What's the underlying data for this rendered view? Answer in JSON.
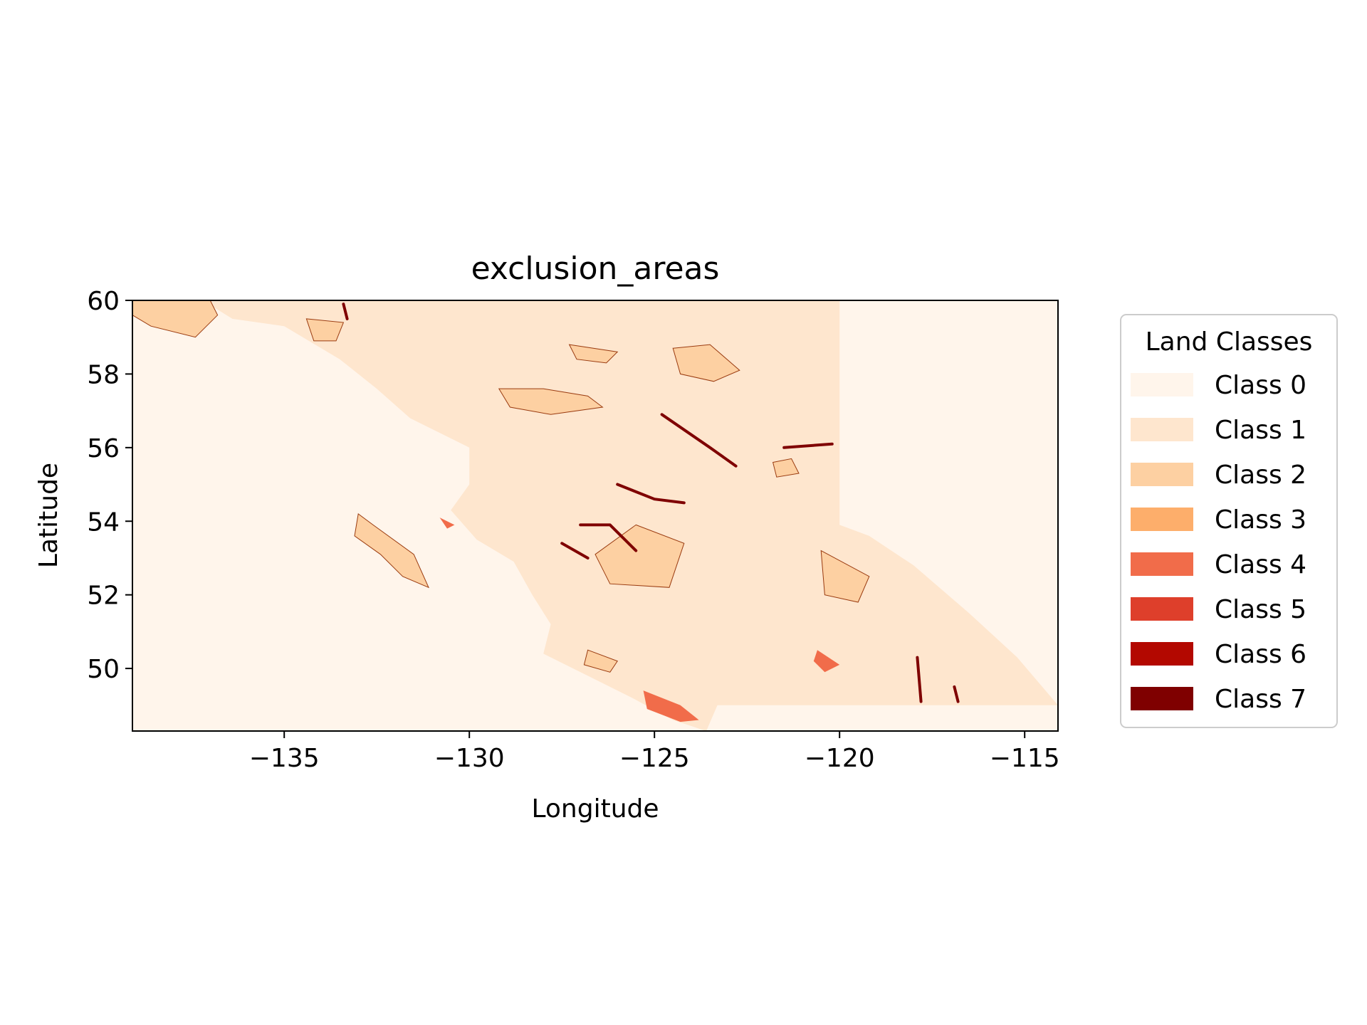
{
  "title": "exclusion_areas",
  "axes": {
    "xlabel": "Longitude",
    "ylabel": "Latitude",
    "xlim": [
      -139.1,
      -114.1
    ],
    "ylim": [
      48.3,
      60
    ],
    "xticks": [
      -135,
      -130,
      -125,
      -120,
      -115
    ],
    "yticks": [
      50,
      52,
      54,
      56,
      58,
      60
    ],
    "xtick_labels": [
      "−135",
      "−130",
      "−125",
      "−120",
      "−115"
    ],
    "ytick_labels": [
      "50",
      "52",
      "54",
      "56",
      "58",
      "60"
    ]
  },
  "legend": {
    "title": "Land Classes",
    "placement": "outside-right",
    "items": [
      {
        "label": "Class 0",
        "color": "#fff5eb"
      },
      {
        "label": "Class 1",
        "color": "#fee6ce"
      },
      {
        "label": "Class 2",
        "color": "#fdd0a2"
      },
      {
        "label": "Class 3",
        "color": "#fdae6b"
      },
      {
        "label": "Class 4",
        "color": "#f16c4a"
      },
      {
        "label": "Class 5",
        "color": "#de3f2b"
      },
      {
        "label": "Class 6",
        "color": "#b30800"
      },
      {
        "label": "Class 7",
        "color": "#7f0000"
      }
    ]
  },
  "map": {
    "colors": {
      "background": "#fff5eb",
      "land": "#fee6ce",
      "patch": "#fdd0a2",
      "patch_edge": "#9a3b10",
      "feature": "#7f0000",
      "hotspot": "#f16c4a",
      "axis": "#000000"
    },
    "land_outline": [
      [
        -137.2,
        60
      ],
      [
        -120,
        60
      ],
      [
        -120,
        53.9
      ],
      [
        -119.2,
        53.6
      ],
      [
        -118,
        52.8
      ],
      [
        -116.5,
        51.5
      ],
      [
        -115.2,
        50.3
      ],
      [
        -114.1,
        49.0
      ],
      [
        -123.3,
        49.0
      ],
      [
        -123.6,
        48.3
      ],
      [
        -124.5,
        48.6
      ],
      [
        -125.6,
        49.2
      ],
      [
        -126.8,
        49.8
      ],
      [
        -128.0,
        50.4
      ],
      [
        -127.8,
        51.2
      ],
      [
        -128.3,
        52.0
      ],
      [
        -128.8,
        52.9
      ],
      [
        -129.8,
        53.5
      ],
      [
        -130.5,
        54.3
      ],
      [
        -130.0,
        55.0
      ],
      [
        -130.0,
        56.0
      ],
      [
        -131.6,
        56.8
      ],
      [
        -132.5,
        57.6
      ],
      [
        -133.5,
        58.4
      ],
      [
        -135.0,
        59.3
      ],
      [
        -136.4,
        59.5
      ]
    ],
    "patches": [
      {
        "class": 2,
        "points": [
          [
            -139.1,
            60
          ],
          [
            -137.0,
            60
          ],
          [
            -136.8,
            59.6
          ],
          [
            -137.4,
            59.0
          ],
          [
            -138.6,
            59.3
          ],
          [
            -139.1,
            59.6
          ]
        ]
      },
      {
        "class": 2,
        "points": [
          [
            -129.2,
            57.6
          ],
          [
            -128.0,
            57.6
          ],
          [
            -126.8,
            57.4
          ],
          [
            -126.4,
            57.1
          ],
          [
            -127.8,
            56.9
          ],
          [
            -128.9,
            57.1
          ]
        ]
      },
      {
        "class": 2,
        "points": [
          [
            -124.5,
            58.7
          ],
          [
            -123.5,
            58.8
          ],
          [
            -122.7,
            58.1
          ],
          [
            -123.4,
            57.8
          ],
          [
            -124.3,
            58.0
          ]
        ]
      },
      {
        "class": 2,
        "points": [
          [
            -127.3,
            58.8
          ],
          [
            -126.0,
            58.6
          ],
          [
            -126.3,
            58.3
          ],
          [
            -127.1,
            58.4
          ]
        ]
      },
      {
        "class": 2,
        "points": [
          [
            -125.5,
            53.9
          ],
          [
            -124.2,
            53.4
          ],
          [
            -124.6,
            52.2
          ],
          [
            -126.2,
            52.3
          ],
          [
            -126.6,
            53.1
          ]
        ]
      },
      {
        "class": 2,
        "points": [
          [
            -120.5,
            53.2
          ],
          [
            -119.2,
            52.5
          ],
          [
            -119.5,
            51.8
          ],
          [
            -120.4,
            52.0
          ]
        ]
      },
      {
        "class": 2,
        "points": [
          [
            -126.8,
            50.5
          ],
          [
            -126.0,
            50.2
          ],
          [
            -126.2,
            49.9
          ],
          [
            -126.9,
            50.1
          ]
        ]
      },
      {
        "class": 2,
        "points": [
          [
            -121.8,
            55.6
          ],
          [
            -121.3,
            55.7
          ],
          [
            -121.1,
            55.3
          ],
          [
            -121.7,
            55.2
          ]
        ]
      },
      {
        "class": 2,
        "points": [
          [
            -133.0,
            54.2
          ],
          [
            -132.6,
            53.9
          ],
          [
            -131.5,
            53.1
          ],
          [
            -131.1,
            52.2
          ],
          [
            -131.8,
            52.5
          ],
          [
            -132.4,
            53.1
          ],
          [
            -133.1,
            53.6
          ]
        ]
      },
      {
        "class": 2,
        "points": [
          [
            -134.4,
            59.5
          ],
          [
            -133.4,
            59.4
          ],
          [
            -133.6,
            58.9
          ],
          [
            -134.2,
            58.9
          ]
        ]
      }
    ],
    "hotspots": [
      {
        "class": 4,
        "points": [
          [
            -125.3,
            49.4
          ],
          [
            -124.3,
            49.0
          ],
          [
            -123.8,
            48.6
          ],
          [
            -124.3,
            48.55
          ],
          [
            -125.2,
            48.9
          ]
        ]
      },
      {
        "class": 4,
        "points": [
          [
            -120.6,
            50.5
          ],
          [
            -120.0,
            50.1
          ],
          [
            -120.4,
            49.9
          ],
          [
            -120.7,
            50.2
          ]
        ]
      },
      {
        "class": 4,
        "points": [
          [
            -130.8,
            54.1
          ],
          [
            -130.4,
            53.9
          ],
          [
            -130.6,
            53.8
          ]
        ]
      }
    ],
    "features": [
      {
        "class": 7,
        "points": [
          [
            -124.8,
            56.9
          ],
          [
            -123.5,
            56.0
          ],
          [
            -122.8,
            55.5
          ]
        ]
      },
      {
        "class": 7,
        "points": [
          [
            -126.0,
            55.0
          ],
          [
            -125.0,
            54.6
          ],
          [
            -124.2,
            54.5
          ]
        ]
      },
      {
        "class": 7,
        "points": [
          [
            -127.0,
            53.9
          ],
          [
            -126.2,
            53.9
          ],
          [
            -125.5,
            53.2
          ]
        ]
      },
      {
        "class": 7,
        "points": [
          [
            -133.4,
            59.9
          ],
          [
            -133.3,
            59.5
          ]
        ]
      },
      {
        "class": 7,
        "points": [
          [
            -117.9,
            50.3
          ],
          [
            -117.8,
            49.1
          ]
        ]
      },
      {
        "class": 7,
        "points": [
          [
            -116.9,
            49.5
          ],
          [
            -116.8,
            49.1
          ]
        ]
      },
      {
        "class": 7,
        "points": [
          [
            -121.5,
            56.0
          ],
          [
            -120.2,
            56.1
          ]
        ]
      },
      {
        "class": 7,
        "points": [
          [
            -127.5,
            53.4
          ],
          [
            -126.8,
            53.0
          ]
        ]
      }
    ]
  }
}
